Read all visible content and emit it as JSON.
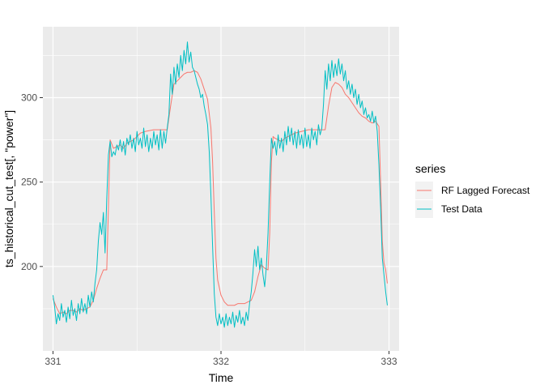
{
  "chart_data": {
    "type": "line",
    "xlabel": "Time",
    "ylabel": "ts_historical_cut_test[, \"power\"]",
    "xlim": [
      330.94,
      333.06
    ],
    "ylim": [
      150,
      342
    ],
    "x_ticks": [
      "331",
      "332",
      "333"
    ],
    "x_tick_values": [
      331,
      332,
      333
    ],
    "y_ticks": [
      "200",
      "250",
      "300"
    ],
    "y_tick_values": [
      200,
      250,
      300
    ],
    "grid": true,
    "legend": {
      "title": "series",
      "position": "right"
    },
    "series": [
      {
        "name": "RF Lagged Forecast",
        "color": "#F8766D",
        "points": [
          [
            331.0,
            181
          ],
          [
            331.02,
            176
          ],
          [
            331.04,
            172
          ],
          [
            331.06,
            173
          ],
          [
            331.08,
            172
          ],
          [
            331.1,
            174
          ],
          [
            331.12,
            174
          ],
          [
            331.14,
            173
          ],
          [
            331.16,
            175
          ],
          [
            331.18,
            174
          ],
          [
            331.2,
            175
          ],
          [
            331.22,
            176
          ],
          [
            331.24,
            180
          ],
          [
            331.26,
            187
          ],
          [
            331.28,
            193
          ],
          [
            331.3,
            198
          ],
          [
            331.32,
            198
          ],
          [
            331.33,
            235
          ],
          [
            331.34,
            275
          ],
          [
            331.36,
            270
          ],
          [
            331.38,
            271
          ],
          [
            331.4,
            272
          ],
          [
            331.42,
            270
          ],
          [
            331.44,
            273
          ],
          [
            331.46,
            274
          ],
          [
            331.48,
            275
          ],
          [
            331.5,
            277
          ],
          [
            331.52,
            279
          ],
          [
            331.55,
            280
          ],
          [
            331.6,
            281
          ],
          [
            331.65,
            281
          ],
          [
            331.68,
            281
          ],
          [
            331.7,
            295
          ],
          [
            331.72,
            308
          ],
          [
            331.74,
            310
          ],
          [
            331.76,
            312
          ],
          [
            331.78,
            314
          ],
          [
            331.8,
            315
          ],
          [
            331.82,
            315
          ],
          [
            331.84,
            316
          ],
          [
            331.86,
            315
          ],
          [
            331.88,
            311
          ],
          [
            331.9,
            305
          ],
          [
            331.92,
            299
          ],
          [
            331.94,
            282
          ],
          [
            331.95,
            262
          ],
          [
            331.96,
            232
          ],
          [
            331.97,
            205
          ],
          [
            331.98,
            192
          ],
          [
            332.0,
            183
          ],
          [
            332.02,
            179
          ],
          [
            332.04,
            177
          ],
          [
            332.06,
            177
          ],
          [
            332.08,
            177
          ],
          [
            332.1,
            178
          ],
          [
            332.12,
            178
          ],
          [
            332.14,
            178
          ],
          [
            332.16,
            179
          ],
          [
            332.18,
            180
          ],
          [
            332.2,
            185
          ],
          [
            332.22,
            194
          ],
          [
            332.24,
            201
          ],
          [
            332.26,
            199
          ],
          [
            332.28,
            198
          ],
          [
            332.29,
            220
          ],
          [
            332.3,
            262
          ],
          [
            332.31,
            277
          ],
          [
            332.32,
            276
          ],
          [
            332.34,
            275
          ],
          [
            332.36,
            274
          ],
          [
            332.38,
            276
          ],
          [
            332.4,
            277
          ],
          [
            332.42,
            278
          ],
          [
            332.44,
            279
          ],
          [
            332.48,
            280
          ],
          [
            332.52,
            281
          ],
          [
            332.56,
            281
          ],
          [
            332.6,
            281
          ],
          [
            332.62,
            281
          ],
          [
            332.64,
            295
          ],
          [
            332.66,
            306
          ],
          [
            332.68,
            309
          ],
          [
            332.7,
            308
          ],
          [
            332.72,
            306
          ],
          [
            332.74,
            302
          ],
          [
            332.76,
            300
          ],
          [
            332.78,
            297
          ],
          [
            332.8,
            294
          ],
          [
            332.82,
            291
          ],
          [
            332.84,
            289
          ],
          [
            332.86,
            288
          ],
          [
            332.88,
            286
          ],
          [
            332.9,
            285
          ],
          [
            332.92,
            286
          ],
          [
            332.94,
            283
          ],
          [
            332.95,
            250
          ],
          [
            332.96,
            215
          ],
          [
            332.97,
            202
          ],
          [
            332.98,
            198
          ],
          [
            332.99,
            190
          ]
        ]
      },
      {
        "name": "Test Data",
        "color": "#00BFC4",
        "points": [
          [
            331.0,
            183
          ],
          [
            331.01,
            176
          ],
          [
            331.02,
            166
          ],
          [
            331.03,
            172
          ],
          [
            331.04,
            168
          ],
          [
            331.05,
            178
          ],
          [
            331.06,
            170
          ],
          [
            331.07,
            174
          ],
          [
            331.08,
            167
          ],
          [
            331.09,
            176
          ],
          [
            331.1,
            169
          ],
          [
            331.11,
            180
          ],
          [
            331.12,
            171
          ],
          [
            331.13,
            175
          ],
          [
            331.14,
            168
          ],
          [
            331.15,
            178
          ],
          [
            331.16,
            172
          ],
          [
            331.17,
            181
          ],
          [
            331.18,
            173
          ],
          [
            331.19,
            178
          ],
          [
            331.2,
            172
          ],
          [
            331.21,
            183
          ],
          [
            331.22,
            176
          ],
          [
            331.23,
            185
          ],
          [
            331.24,
            179
          ],
          [
            331.25,
            190
          ],
          [
            331.26,
            198
          ],
          [
            331.27,
            215
          ],
          [
            331.28,
            226
          ],
          [
            331.29,
            219
          ],
          [
            331.3,
            232
          ],
          [
            331.31,
            208
          ],
          [
            331.32,
            240
          ],
          [
            331.33,
            266
          ],
          [
            331.34,
            274
          ],
          [
            331.35,
            265
          ],
          [
            331.36,
            268
          ],
          [
            331.37,
            266
          ],
          [
            331.38,
            272
          ],
          [
            331.39,
            269
          ],
          [
            331.4,
            275
          ],
          [
            331.41,
            268
          ],
          [
            331.42,
            274
          ],
          [
            331.43,
            266
          ],
          [
            331.44,
            276
          ],
          [
            331.45,
            272
          ],
          [
            331.46,
            278
          ],
          [
            331.47,
            270
          ],
          [
            331.48,
            276
          ],
          [
            331.49,
            268
          ],
          [
            331.5,
            280
          ],
          [
            331.51,
            272
          ],
          [
            331.52,
            276
          ],
          [
            331.53,
            270
          ],
          [
            331.54,
            282
          ],
          [
            331.55,
            271
          ],
          [
            331.56,
            278
          ],
          [
            331.57,
            268
          ],
          [
            331.58,
            276
          ],
          [
            331.59,
            270
          ],
          [
            331.6,
            280
          ],
          [
            331.61,
            272
          ],
          [
            331.62,
            278
          ],
          [
            331.63,
            269
          ],
          [
            331.64,
            281
          ],
          [
            331.65,
            270
          ],
          [
            331.66,
            280
          ],
          [
            331.67,
            273
          ],
          [
            331.68,
            282
          ],
          [
            331.69,
            290
          ],
          [
            331.7,
            314
          ],
          [
            331.71,
            302
          ],
          [
            331.72,
            318
          ],
          [
            331.73,
            308
          ],
          [
            331.74,
            320
          ],
          [
            331.75,
            312
          ],
          [
            331.76,
            325
          ],
          [
            331.77,
            316
          ],
          [
            331.78,
            328
          ],
          [
            331.79,
            320
          ],
          [
            331.8,
            333
          ],
          [
            331.81,
            321
          ],
          [
            331.82,
            327
          ],
          [
            331.83,
            318
          ],
          [
            331.84,
            316
          ],
          [
            331.85,
            312
          ],
          [
            331.86,
            308
          ],
          [
            331.87,
            305
          ],
          [
            331.88,
            300
          ],
          [
            331.89,
            302
          ],
          [
            331.9,
            295
          ],
          [
            331.91,
            290
          ],
          [
            331.92,
            284
          ],
          [
            331.93,
            268
          ],
          [
            331.94,
            242
          ],
          [
            331.95,
            212
          ],
          [
            331.96,
            184
          ],
          [
            331.97,
            170
          ],
          [
            331.98,
            165
          ],
          [
            331.99,
            172
          ],
          [
            332.0,
            166
          ],
          [
            332.01,
            170
          ],
          [
            332.02,
            164
          ],
          [
            332.03,
            172
          ],
          [
            332.04,
            165
          ],
          [
            332.05,
            170
          ],
          [
            332.06,
            166
          ],
          [
            332.07,
            173
          ],
          [
            332.08,
            164
          ],
          [
            332.09,
            171
          ],
          [
            332.1,
            167
          ],
          [
            332.11,
            174
          ],
          [
            332.12,
            166
          ],
          [
            332.13,
            170
          ],
          [
            332.14,
            165
          ],
          [
            332.15,
            173
          ],
          [
            332.16,
            168
          ],
          [
            332.17,
            178
          ],
          [
            332.18,
            185
          ],
          [
            332.19,
            196
          ],
          [
            332.2,
            210
          ],
          [
            332.21,
            200
          ],
          [
            332.22,
            212
          ],
          [
            332.23,
            198
          ],
          [
            332.24,
            205
          ],
          [
            332.25,
            195
          ],
          [
            332.26,
            188
          ],
          [
            332.27,
            200
          ],
          [
            332.28,
            220
          ],
          [
            332.29,
            250
          ],
          [
            332.3,
            276
          ],
          [
            332.31,
            270
          ],
          [
            332.32,
            274
          ],
          [
            332.33,
            266
          ],
          [
            332.34,
            278
          ],
          [
            332.35,
            270
          ],
          [
            332.36,
            276
          ],
          [
            332.37,
            268
          ],
          [
            332.38,
            280
          ],
          [
            332.39,
            272
          ],
          [
            332.4,
            283
          ],
          [
            332.41,
            274
          ],
          [
            332.42,
            282
          ],
          [
            332.43,
            272
          ],
          [
            332.44,
            280
          ],
          [
            332.45,
            270
          ],
          [
            332.46,
            281
          ],
          [
            332.47,
            272
          ],
          [
            332.48,
            278
          ],
          [
            332.49,
            270
          ],
          [
            332.5,
            282
          ],
          [
            332.51,
            271
          ],
          [
            332.52,
            278
          ],
          [
            332.53,
            270
          ],
          [
            332.54,
            282
          ],
          [
            332.55,
            275
          ],
          [
            332.56,
            280
          ],
          [
            332.57,
            272
          ],
          [
            332.58,
            284
          ],
          [
            332.59,
            278
          ],
          [
            332.6,
            282
          ],
          [
            332.61,
            296
          ],
          [
            332.62,
            316
          ],
          [
            332.63,
            305
          ],
          [
            332.64,
            320
          ],
          [
            332.65,
            310
          ],
          [
            332.66,
            322
          ],
          [
            332.67,
            312
          ],
          [
            332.68,
            320
          ],
          [
            332.69,
            313
          ],
          [
            332.7,
            323
          ],
          [
            332.71,
            314
          ],
          [
            332.72,
            320
          ],
          [
            332.73,
            310
          ],
          [
            332.74,
            316
          ],
          [
            332.75,
            305
          ],
          [
            332.76,
            310
          ],
          [
            332.77,
            302
          ],
          [
            332.78,
            308
          ],
          [
            332.79,
            300
          ],
          [
            332.8,
            305
          ],
          [
            332.81,
            296
          ],
          [
            332.82,
            302
          ],
          [
            332.83,
            294
          ],
          [
            332.84,
            298
          ],
          [
            332.85,
            290
          ],
          [
            332.86,
            294
          ],
          [
            332.87,
            288
          ],
          [
            332.88,
            290
          ],
          [
            332.89,
            286
          ],
          [
            332.9,
            292
          ],
          [
            332.91,
            285
          ],
          [
            332.92,
            289
          ],
          [
            332.93,
            280
          ],
          [
            332.94,
            260
          ],
          [
            332.95,
            235
          ],
          [
            332.96,
            205
          ],
          [
            332.97,
            195
          ],
          [
            332.98,
            185
          ],
          [
            332.99,
            177
          ]
        ]
      }
    ]
  }
}
